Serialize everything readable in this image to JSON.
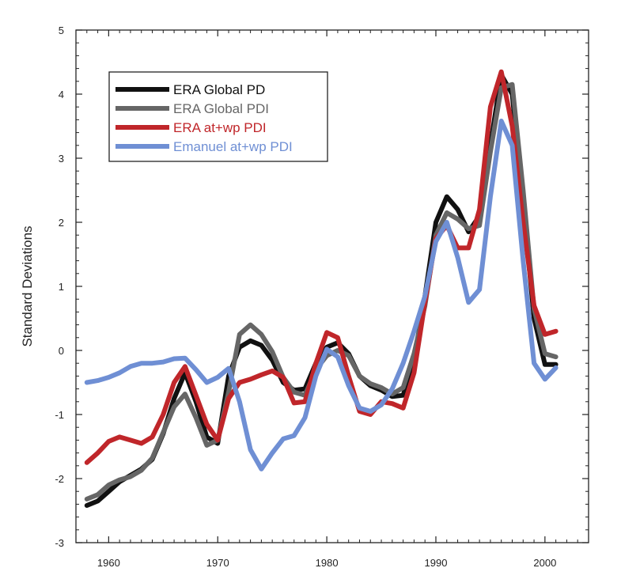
{
  "chart_data": {
    "type": "line",
    "title": "",
    "xlabel": "",
    "ylabel": "Standard Deviations",
    "xlim": [
      1957,
      2004
    ],
    "ylim": [
      -3,
      5
    ],
    "x_ticks": [
      1960,
      1970,
      1980,
      1990,
      2000
    ],
    "y_ticks": [
      -3,
      -2,
      -1,
      0,
      1,
      2,
      3,
      4,
      5
    ],
    "grid": false,
    "legend_position": "top-left",
    "x": [
      1958,
      1959,
      1960,
      1961,
      1962,
      1963,
      1964,
      1965,
      1966,
      1967,
      1968,
      1969,
      1970,
      1971,
      1972,
      1973,
      1974,
      1975,
      1976,
      1977,
      1978,
      1979,
      1980,
      1981,
      1982,
      1983,
      1984,
      1985,
      1986,
      1987,
      1988,
      1989,
      1990,
      1991,
      1992,
      1993,
      1994,
      1995,
      1996,
      1997,
      1998,
      1999,
      2000,
      2001
    ],
    "series": [
      {
        "name": "ERA Global PD",
        "color": "#111111",
        "values": [
          -2.42,
          -2.35,
          -2.2,
          -2.05,
          -1.95,
          -1.85,
          -1.7,
          -1.3,
          -0.75,
          -0.35,
          -0.8,
          -1.35,
          -1.45,
          -0.4,
          0.05,
          0.15,
          0.08,
          -0.15,
          -0.5,
          -0.62,
          -0.6,
          -0.2,
          0.05,
          0.12,
          -0.05,
          -0.4,
          -0.55,
          -0.62,
          -0.72,
          -0.7,
          -0.15,
          0.85,
          2.0,
          2.4,
          2.2,
          1.85,
          2.1,
          3.2,
          4.3,
          4.0,
          2.3,
          0.5,
          -0.22,
          -0.22
        ]
      },
      {
        "name": "ERA Global PDI",
        "color": "#666666",
        "values": [
          -2.32,
          -2.25,
          -2.1,
          -2.02,
          -1.97,
          -1.87,
          -1.68,
          -1.28,
          -0.88,
          -0.68,
          -1.05,
          -1.48,
          -1.4,
          -0.65,
          0.25,
          0.4,
          0.25,
          -0.02,
          -0.42,
          -0.65,
          -0.7,
          -0.3,
          -0.08,
          0.0,
          -0.08,
          -0.4,
          -0.52,
          -0.58,
          -0.68,
          -0.58,
          -0.05,
          0.7,
          1.8,
          2.15,
          2.05,
          1.9,
          1.95,
          3.1,
          4.1,
          4.15,
          2.5,
          0.65,
          -0.05,
          -0.1
        ]
      },
      {
        "name": "ERA at+wp PDI",
        "color": "#c0262a",
        "values": [
          -1.75,
          -1.6,
          -1.42,
          -1.35,
          -1.4,
          -1.45,
          -1.35,
          -1.0,
          -0.5,
          -0.25,
          -0.7,
          -1.15,
          -1.4,
          -0.75,
          -0.5,
          -0.45,
          -0.38,
          -0.32,
          -0.42,
          -0.82,
          -0.8,
          -0.2,
          0.28,
          0.2,
          -0.4,
          -0.95,
          -1.0,
          -0.8,
          -0.83,
          -0.9,
          -0.35,
          0.75,
          1.75,
          1.95,
          1.6,
          1.6,
          2.2,
          3.8,
          4.35,
          3.5,
          2.0,
          0.7,
          0.25,
          0.3
        ]
      },
      {
        "name": "Emanuel at+wp PDI",
        "color": "#6f8fd4",
        "values": [
          -0.5,
          -0.47,
          -0.42,
          -0.35,
          -0.25,
          -0.2,
          -0.2,
          -0.18,
          -0.13,
          -0.12,
          -0.3,
          -0.5,
          -0.42,
          -0.28,
          -0.8,
          -1.55,
          -1.85,
          -1.6,
          -1.38,
          -1.33,
          -1.05,
          -0.4,
          0.02,
          -0.1,
          -0.55,
          -0.9,
          -0.95,
          -0.85,
          -0.6,
          -0.2,
          0.3,
          0.85,
          1.7,
          2.0,
          1.45,
          0.75,
          0.95,
          2.4,
          3.58,
          3.2,
          1.4,
          -0.2,
          -0.45,
          -0.27
        ]
      }
    ]
  }
}
